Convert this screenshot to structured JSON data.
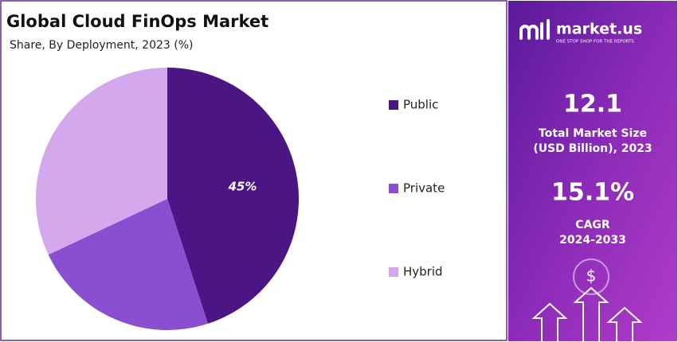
{
  "chart_data": {
    "type": "pie",
    "title": "Global Cloud FinOps Market",
    "subtitle": "Share, By Deployment, 2023 (%)",
    "categories": [
      "Public",
      "Private",
      "Hybrid"
    ],
    "values": [
      45,
      23,
      32
    ],
    "value_labels": [
      "45%",
      null,
      null
    ],
    "colors": [
      "#4b1583",
      "#8a4fd0",
      "#d3a8ec"
    ],
    "legend": "right"
  },
  "sidebar": {
    "brand": "market.us",
    "tagline": "ONE STOP SHOP FOR THE REPORTS",
    "market_size": "12.1",
    "market_size_label": [
      "Total Market Size",
      "(USD Billion), 2023"
    ],
    "cagr": "15.1%",
    "cagr_label": [
      "CAGR",
      "2024-2033"
    ],
    "icon": "$"
  }
}
